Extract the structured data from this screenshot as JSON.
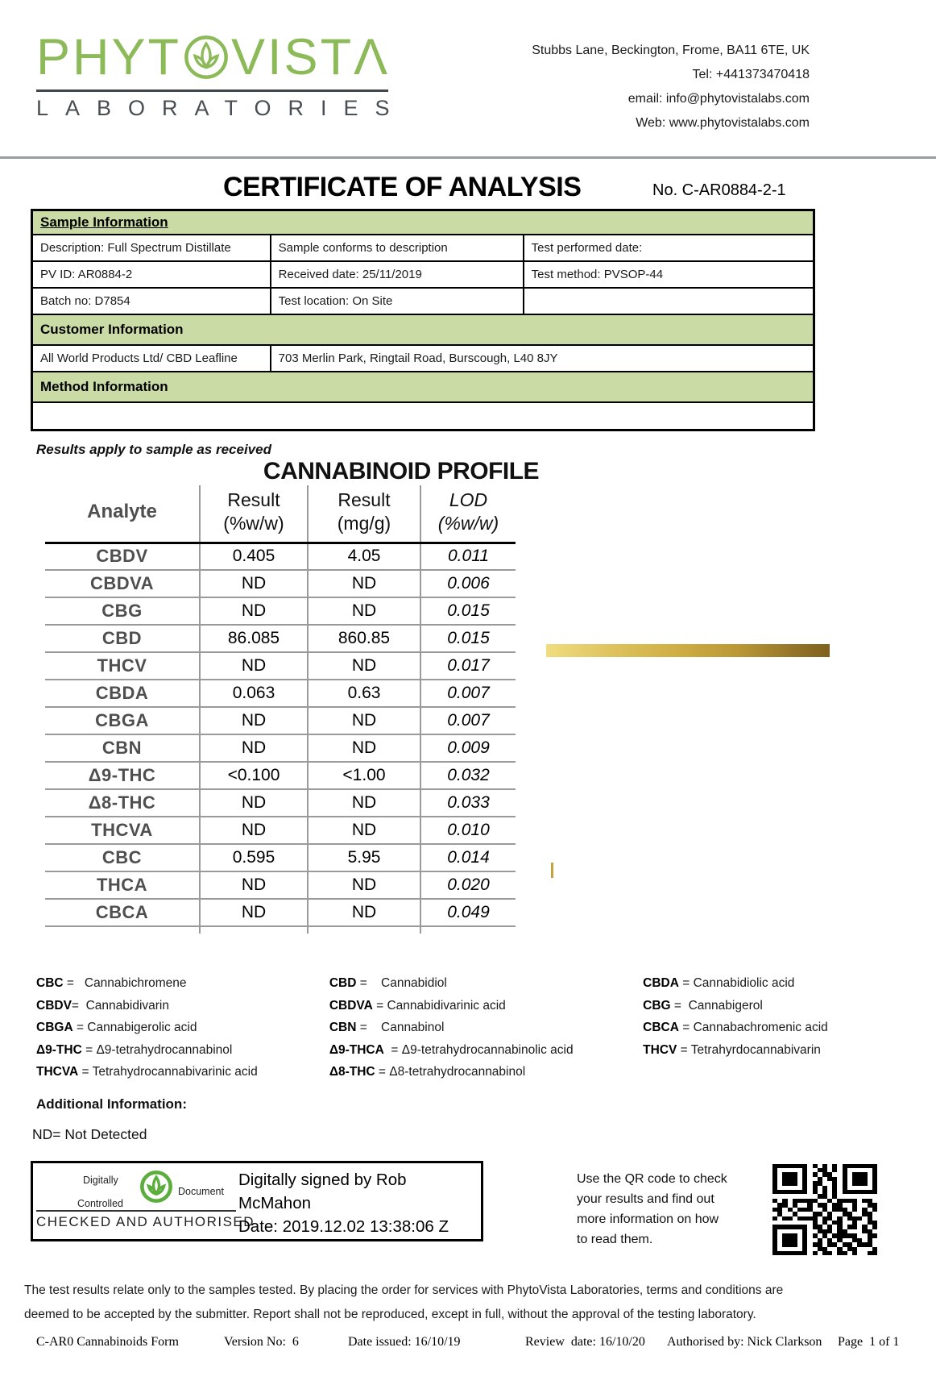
{
  "header": {
    "brand_part1": "PHYT",
    "brand_part2": "VISTΛ",
    "brand_sub": "LABORATORIES",
    "contact": {
      "address": "Stubbs Lane, Beckington, Frome, BA11 6TE, UK",
      "tel": "Tel: +441373470418",
      "email": "email: info@phytovistalabs.com",
      "web": "Web: www.phytovistalabs.com"
    }
  },
  "title": "CERTIFICATE OF ANALYSIS",
  "certificate_no": "No. C-AR0884-2-1",
  "sample_information": {
    "heading": "Sample Information",
    "rows": [
      [
        "Description: Full Spectrum Distillate",
        "Sample conforms to description",
        "Test performed date:"
      ],
      [
        "PV ID: AR0884-2",
        "Received date: 25/11/2019",
        "Test method: PVSOP-44"
      ],
      [
        "Batch no: D7854",
        "Test location: On Site",
        ""
      ]
    ]
  },
  "customer_information": {
    "heading": "Customer Information",
    "name": "All World Products Ltd/ CBD Leafline",
    "address": "703 Merlin Park, Ringtail Road, Burscough, L40 8JY"
  },
  "method_information": {
    "heading": "Method Information",
    "content": ""
  },
  "results_note": "Results apply to sample as received",
  "profile": {
    "title": "CANNABINOID PROFILE",
    "columns": [
      {
        "l1": "Analyte",
        "l2": ""
      },
      {
        "l1": "Result",
        "l2": "(%w/w)"
      },
      {
        "l1": "Result",
        "l2": "(mg/g)"
      },
      {
        "l1": "LOD",
        "l2": "(%w/w)"
      }
    ],
    "rows": [
      {
        "analyte": "CBDV",
        "result_pct": "0.405",
        "result_mgg": "4.05",
        "lod": "0.011"
      },
      {
        "analyte": "CBDVA",
        "result_pct": "ND",
        "result_mgg": "ND",
        "lod": "0.006"
      },
      {
        "analyte": "CBG",
        "result_pct": "ND",
        "result_mgg": "ND",
        "lod": "0.015"
      },
      {
        "analyte": "CBD",
        "result_pct": "86.085",
        "result_mgg": "860.85",
        "lod": "0.015"
      },
      {
        "analyte": "THCV",
        "result_pct": "ND",
        "result_mgg": "ND",
        "lod": "0.017"
      },
      {
        "analyte": "CBDA",
        "result_pct": "0.063",
        "result_mgg": "0.63",
        "lod": "0.007"
      },
      {
        "analyte": "CBGA",
        "result_pct": "ND",
        "result_mgg": "ND",
        "lod": "0.007"
      },
      {
        "analyte": "CBN",
        "result_pct": "ND",
        "result_mgg": "ND",
        "lod": "0.009"
      },
      {
        "analyte": "Δ9-THC",
        "result_pct": "<0.100",
        "result_mgg": "<1.00",
        "lod": "0.032"
      },
      {
        "analyte": "Δ8-THC",
        "result_pct": "ND",
        "result_mgg": "ND",
        "lod": "0.033"
      },
      {
        "analyte": "THCVA",
        "result_pct": "ND",
        "result_mgg": "ND",
        "lod": "0.010"
      },
      {
        "analyte": "CBC",
        "result_pct": "0.595",
        "result_mgg": "5.95",
        "lod": "0.014"
      },
      {
        "analyte": "THCA",
        "result_pct": "ND",
        "result_mgg": "ND",
        "lod": "0.020"
      },
      {
        "analyte": "CBCA",
        "result_pct": "ND",
        "result_mgg": "ND",
        "lod": "0.049"
      }
    ]
  },
  "legend": {
    "columns": [
      [
        {
          "abbr": "CBC",
          "name": " =   Cannabichromene"
        },
        {
          "abbr": "CBDV",
          "name": "=  Cannabidivarin"
        },
        {
          "abbr": "CBGA",
          "name": " = Cannabigerolic acid"
        },
        {
          "abbr": "Δ9-THC",
          "name": " = Δ9-tetrahydrocannabinol"
        },
        {
          "abbr": "THCVA",
          "name": " = Tetrahydrocannabivarinic acid"
        }
      ],
      [
        {
          "abbr": "CBD",
          "name": " =    Cannabidiol"
        },
        {
          "abbr": "CBDVA",
          "name": " = Cannabidivarinic acid"
        },
        {
          "abbr": "CBN",
          "name": " =    Cannabinol"
        },
        {
          "abbr": "Δ9-THCA",
          "name": "  = Δ9-tetrahydrocannabinolic acid"
        },
        {
          "abbr": "Δ8-THC",
          "name": " = Δ8-tetrahydrocannabinol"
        }
      ],
      [
        {
          "abbr": "CBDA",
          "name": " = Cannabidiolic acid"
        },
        {
          "abbr": "CBG",
          "name": " =  Cannabigerol"
        },
        {
          "abbr": "CBCA",
          "name": " = Cannabachromenic acid"
        },
        {
          "abbr": "THCV",
          "name": " = Tetrahyrdocannabivarin"
        }
      ]
    ]
  },
  "additional_information": {
    "heading": "Additional Information:",
    "nd_note": "ND= Not Detected"
  },
  "signature": {
    "stamp": {
      "digitally": "Digitally",
      "controlled": "Controlled",
      "document": "Document",
      "checked": "CHECKED AND AUTHORISED"
    },
    "signed_line1": "Digitally signed by Rob",
    "signed_line2": "McMahon",
    "date_line": "Date: 2019.12.02 13:38:06 Z"
  },
  "qr": {
    "lines": [
      "Use the QR code to check",
      "your results and find out",
      "more information on how",
      "to read them."
    ],
    "pattern": [
      "111111101010101111111",
      "100000100110101000001",
      "101110101011001011101",
      "101110100101101011101",
      "101110101100101011101",
      "100000101010101000001",
      "111111101010101111111",
      "000000000110100000000",
      "101011111001011110110",
      "011010010110110010011",
      "110101110010111010101",
      "010010001101001100110",
      "101101111011010111010",
      "000000001010110010011",
      "111111101101010110101",
      "100000100111011000110",
      "101110101010111110011",
      "101110100101010011010",
      "101110101101101101110",
      "100000100110010110001",
      "111111101011011010011"
    ]
  },
  "disclaimer": {
    "line1": "The test results relate only to the samples tested.  By placing the order for services with PhytoVista Laboratories, terms and conditions are",
    "line2": "deemed to be accepted by the submitter. Report shall not be reproduced, except in full, without the approval of the testing laboratory."
  },
  "footer": {
    "form": "C-AR0 Cannabinoids Form",
    "version": "Version No:  6",
    "date_issued": "Date issued: 16/10/19",
    "review": "Review  date: 16/10/20",
    "authorised": "Authorised by: Nick Clarkson",
    "page": "Page  1 of 1"
  },
  "colors": {
    "brand_green": "#8CBA58",
    "stamp_green": "#5BAE3C",
    "band_green": "#CBDBA6",
    "gold_light": "#F0DD80",
    "gold_dark": "#7E611E"
  }
}
